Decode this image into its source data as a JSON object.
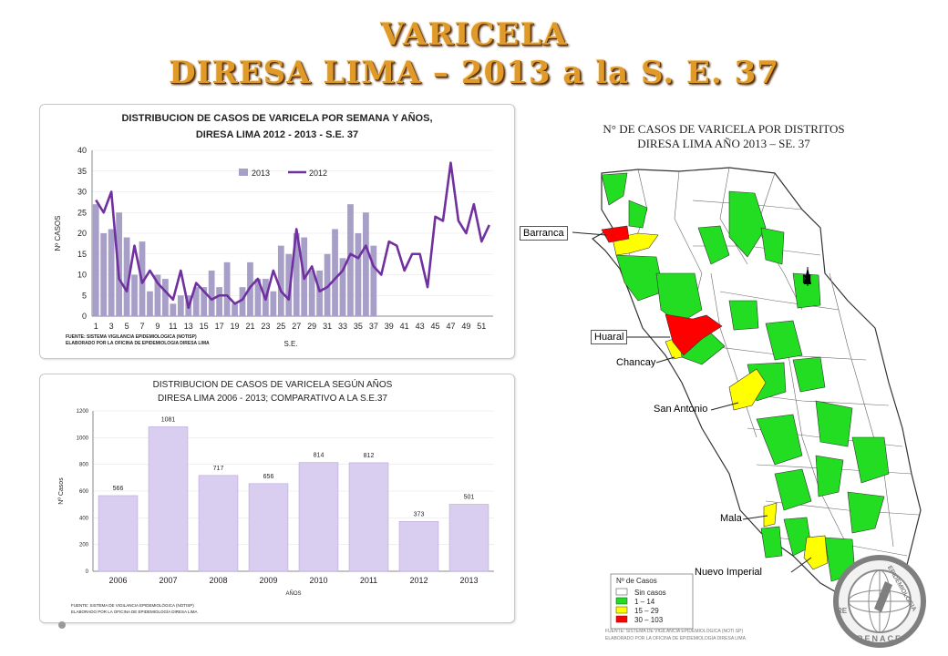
{
  "title": {
    "line1": "VARICELA",
    "line2": "DIRESA LIMA – 2013 a la  S. E. 37"
  },
  "chart1": {
    "title1": "DISTRIBUCION DE CASOS DE VARICELA POR SEMANA Y AÑOS,",
    "title2": "DIRESA  LIMA 2012 - 2013 - S.E.  37",
    "ylabel": "Nº CASOS",
    "xlabel": "S.E.",
    "source1": "FUENTE: SISTEMA VIGILANCIA EPIDEMIOLOGICA (NOTISP)",
    "source2": "ELABORADO POR LA OFICINA DE EPIDEMIOLOGIA DIRESA LIMA"
  },
  "chart2": {
    "title1": "DISTRIBUCION DE CASOS DE VARICELA SEGÚN AÑOS",
    "title2": "DIRESA  LIMA  2006 - 2013; COMPARATIVO  A LA S.E.37",
    "ylabel": "Nº Casos",
    "xlabel": "AÑOS",
    "source1": "FUENTE: SISTEMA DE VIGILANCIA EPIDEMIOLÓGICA (NOTISP)",
    "source2": "ELABORADO POR LA OFICINA DE EPIDEMIOLOGÍA  DIRESA  LIMA"
  },
  "chart_data": [
    {
      "type": "bar",
      "x": [
        1,
        2,
        3,
        4,
        5,
        6,
        7,
        8,
        9,
        10,
        11,
        12,
        13,
        14,
        15,
        16,
        17,
        18,
        19,
        20,
        21,
        22,
        23,
        24,
        25,
        26,
        27,
        28,
        29,
        30,
        31,
        32,
        33,
        34,
        35,
        36,
        37,
        38,
        39,
        40,
        41,
        42,
        43,
        44,
        45,
        46,
        47,
        48,
        49,
        50,
        51,
        52
      ],
      "series": [
        {
          "name": "2013",
          "kind": "bar",
          "color": "#a79fc8",
          "values": [
            27,
            20,
            21,
            25,
            19,
            10,
            18,
            6,
            10,
            9,
            3,
            5,
            5,
            7,
            7,
            11,
            7,
            13,
            3,
            7,
            13,
            9,
            9,
            6,
            17,
            15,
            20,
            19,
            11,
            11,
            15,
            21,
            14,
            27,
            20,
            25,
            17,
            null,
            null,
            null,
            null,
            null,
            null,
            null,
            null,
            null,
            null,
            null,
            null,
            null,
            null,
            null
          ]
        },
        {
          "name": "2012",
          "kind": "line",
          "color": "#7030a0",
          "values": [
            28,
            25,
            30,
            9,
            6,
            17,
            8,
            11,
            8,
            6,
            4,
            11,
            2,
            8,
            6,
            4,
            5,
            5,
            3,
            4,
            7,
            9,
            4,
            11,
            6,
            4,
            21,
            9,
            12,
            6,
            7,
            9,
            11,
            15,
            14,
            17,
            12,
            10,
            18,
            17,
            11,
            15,
            15,
            7,
            24,
            23,
            37,
            23,
            20,
            27,
            18,
            22
          ]
        }
      ],
      "xticks": [
        1,
        3,
        5,
        7,
        9,
        11,
        13,
        15,
        17,
        19,
        21,
        23,
        25,
        27,
        29,
        31,
        33,
        35,
        37,
        39,
        41,
        43,
        45,
        47,
        49,
        51
      ],
      "ylim": [
        0,
        40
      ],
      "yticks": [
        0,
        5,
        10,
        15,
        20,
        25,
        30,
        35,
        40
      ],
      "title": "DISTRIBUCION DE CASOS DE VARICELA POR SEMANA Y AÑOS, DIRESA  LIMA 2012 - 2013 - S.E.  37",
      "xlabel": "S.E.",
      "ylabel": "Nº CASOS",
      "legend": "top-center"
    },
    {
      "type": "bar",
      "categories": [
        "2006",
        "2007",
        "2008",
        "2009",
        "2010",
        "2011",
        "2012",
        "2013"
      ],
      "values": [
        566,
        1081,
        717,
        656,
        814,
        812,
        373,
        501
      ],
      "ylim": [
        0,
        1200
      ],
      "yticks": [
        0,
        200,
        400,
        600,
        800,
        1000,
        1200
      ],
      "title": "DISTRIBUCION DE CASOS DE VARICELA SEGÚN AÑOS DIRESA  LIMA  2006 - 2013; COMPARATIVO  A LA S.E.37",
      "xlabel": "AÑOS",
      "ylabel": "Nº Casos",
      "color": "#d9cdf0"
    }
  ],
  "map": {
    "title1": "N° DE CASOS DE VARICELA POR DISTRITOS",
    "title2": "DIRESA LIMA AÑO 2013 – SE. 37",
    "labels": {
      "barranca": "Barranca",
      "huaral": "Huaral",
      "chancay": "Chancay",
      "san_antonio": "San Antonio",
      "mala": "Mala",
      "nuevo_imperial": "Nuevo Imperial"
    },
    "legend": {
      "title": "Nº de Casos",
      "items": [
        {
          "label": "Sin casos",
          "color": "#ffffff"
        },
        {
          "label": "1 – 14",
          "color": "#22dd22"
        },
        {
          "label": "15 – 29",
          "color": "#ffff00"
        },
        {
          "label": "30 – 103",
          "color": "#ff0000"
        }
      ]
    },
    "north": "N",
    "logo": {
      "top": "EPIDEMIOLOGIA",
      "bottom": "RENACE",
      "left": "RE"
    },
    "source1": "FUENTE: SISTEMA DE VIGILANCIA EPIDEMIOLOGICA (NOTI SP)",
    "source2": "ELABORADO POR LA OFICINA DE EPIDEMIOLOGIA DIRESA LIMA"
  }
}
